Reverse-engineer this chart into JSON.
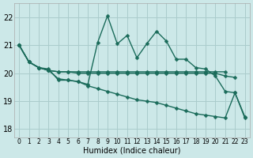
{
  "background_color": "#cce8e8",
  "grid_color": "#aacccc",
  "line_color": "#1a6b5a",
  "xlabel": "Humidex (Indice chaleur)",
  "ylim": [
    17.7,
    22.5
  ],
  "xlim": [
    -0.5,
    23.5
  ],
  "yticks": [
    18,
    19,
    20,
    21,
    22
  ],
  "xticks": [
    0,
    1,
    2,
    3,
    4,
    5,
    6,
    7,
    8,
    9,
    10,
    11,
    12,
    13,
    14,
    15,
    16,
    17,
    18,
    19,
    20,
    21,
    22,
    23
  ],
  "series": [
    {
      "x": [
        0,
        1,
        2,
        3,
        4,
        5,
        6,
        7,
        8,
        9,
        10,
        11,
        12,
        13,
        14,
        15,
        16,
        17,
        18,
        19,
        20,
        21,
        22,
        23
      ],
      "y": [
        21.0,
        20.4,
        20.2,
        20.15,
        19.75,
        19.75,
        19.7,
        19.6,
        21.1,
        22.05,
        21.05,
        21.35,
        20.55,
        21.05,
        21.5,
        21.15,
        20.5,
        20.5,
        20.2,
        20.15,
        19.9,
        19.35,
        19.3,
        18.45
      ]
    },
    {
      "x": [
        0,
        1,
        2,
        3,
        4,
        5,
        6,
        7,
        8,
        9,
        10,
        11,
        12,
        13,
        14,
        15,
        16,
        17,
        18,
        19,
        20,
        21
      ],
      "y": [
        21.0,
        20.4,
        20.2,
        20.1,
        20.05,
        20.05,
        20.05,
        20.05,
        20.05,
        20.05,
        20.05,
        20.05,
        20.05,
        20.05,
        20.05,
        20.05,
        20.05,
        20.05,
        20.05,
        20.05,
        20.05,
        20.05
      ]
    },
    {
      "x": [
        0,
        1,
        2,
        3,
        4,
        5,
        6,
        7,
        8,
        9,
        10,
        11,
        12,
        13,
        14,
        15,
        16,
        17,
        18,
        19,
        20,
        21,
        22
      ],
      "y": [
        21.0,
        20.4,
        20.2,
        20.1,
        20.05,
        20.05,
        20.0,
        20.0,
        20.0,
        20.0,
        20.0,
        20.0,
        20.0,
        20.0,
        20.0,
        20.0,
        20.0,
        20.0,
        20.0,
        20.0,
        20.0,
        19.9,
        19.85
      ]
    },
    {
      "x": [
        0,
        1,
        2,
        3,
        4,
        5,
        6,
        7,
        8,
        9,
        10,
        11,
        12,
        13,
        14,
        15,
        16,
        17,
        18,
        19,
        20,
        21,
        22,
        23
      ],
      "y": [
        21.0,
        20.4,
        20.2,
        20.1,
        19.8,
        19.75,
        19.7,
        19.55,
        19.45,
        19.35,
        19.25,
        19.15,
        19.05,
        19.0,
        18.95,
        18.85,
        18.75,
        18.65,
        18.55,
        18.5,
        18.45,
        18.4,
        19.3,
        18.4
      ]
    }
  ]
}
